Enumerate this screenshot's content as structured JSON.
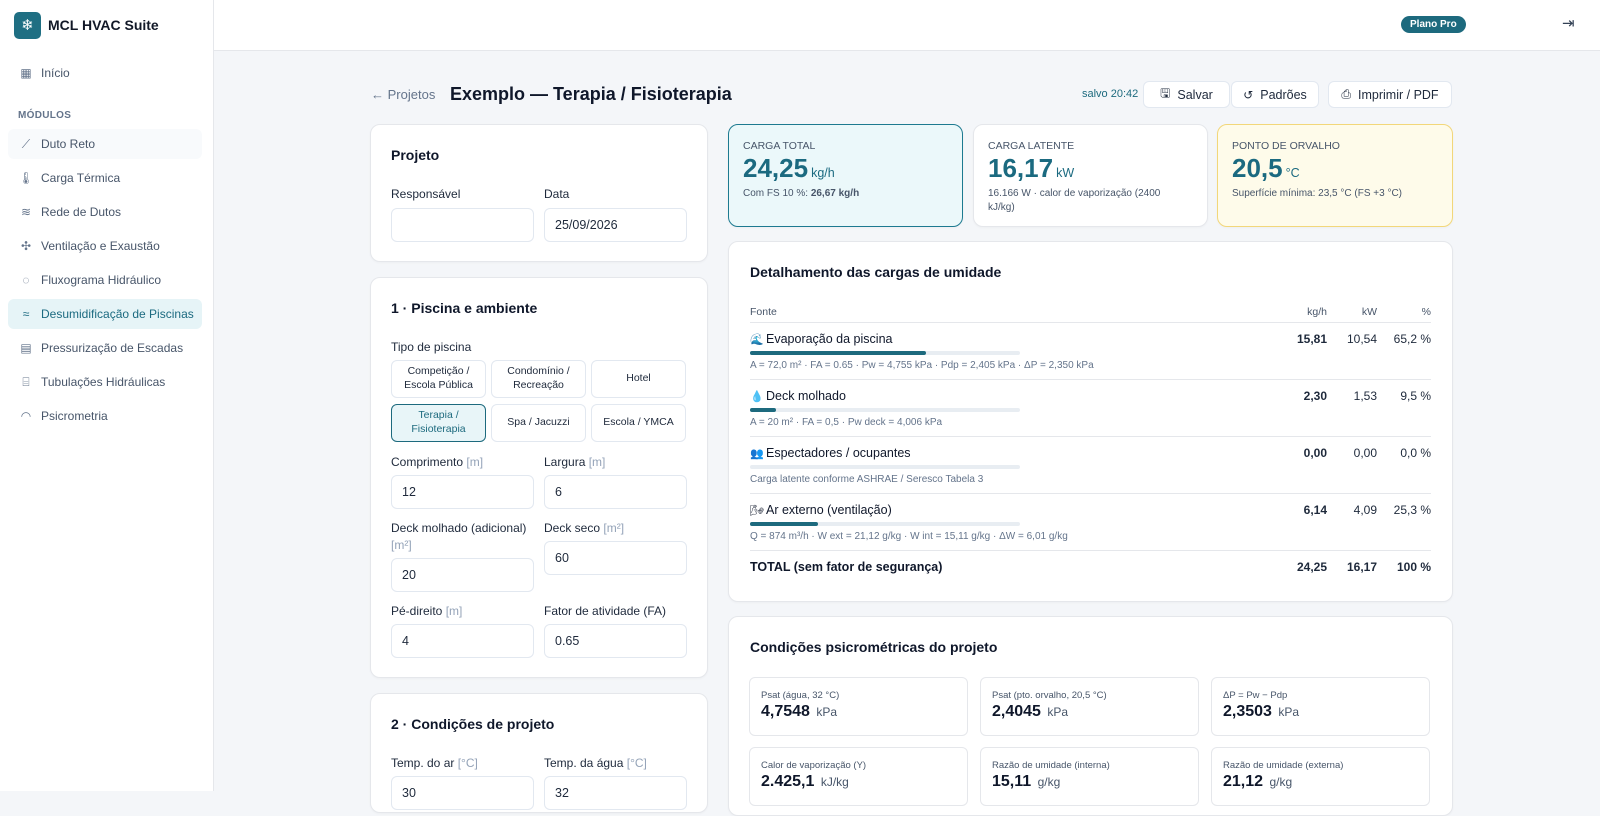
{
  "app": {
    "name": "MCL HVAC Suite",
    "logo_icon": "snowflake-icon"
  },
  "sidebar": {
    "home": "Início",
    "section": "MÓDULOS",
    "items": [
      {
        "label": "Duto Reto",
        "icon": "ruler-icon"
      },
      {
        "label": "Carga Térmica",
        "icon": "thermometer-icon"
      },
      {
        "label": "Rede de Dutos",
        "icon": "wind-icon"
      },
      {
        "label": "Ventilação e Exaustão",
        "icon": "fan-icon"
      },
      {
        "label": "Fluxograma Hidráulico",
        "icon": "droplets-icon"
      },
      {
        "label": "Desumidificação de Piscinas",
        "icon": "waves-icon",
        "active": true
      },
      {
        "label": "Pressurização de Escadas",
        "icon": "building-icon"
      },
      {
        "label": "Tubulações Hidráulicas",
        "icon": "cylinder-icon"
      },
      {
        "label": "Psicrometria",
        "icon": "gauge-icon"
      }
    ]
  },
  "topbar": {
    "plan": "Plano Pro"
  },
  "header": {
    "back": "Projetos",
    "title": "Exemplo — Terapia / Fisioterapia",
    "saved": "salvo 20:42",
    "save": "Salvar",
    "defaults": "Padrões",
    "print": "Imprimir / PDF"
  },
  "project": {
    "title": "Projeto",
    "responsible_label": "Responsável",
    "responsible_value": "",
    "date_label": "Data",
    "date_value": "25/09/2026"
  },
  "pool": {
    "title": "1 · Piscina e ambiente",
    "type_label": "Tipo de piscina",
    "types": [
      {
        "line1": "Competição /",
        "line2": "Escola Pública"
      },
      {
        "line1": "Condomínio /",
        "line2": "Recreação"
      },
      {
        "line1": "Hotel",
        "line2": ""
      },
      {
        "line1": "Terapia /",
        "line2": "Fisioterapia",
        "selected": true
      },
      {
        "line1": "Spa / Jacuzzi",
        "line2": ""
      },
      {
        "line1": "Escola / YMCA",
        "line2": ""
      }
    ],
    "length_label": "Comprimento",
    "length_unit": "[m]",
    "length_value": "12",
    "width_label": "Largura",
    "width_unit": "[m]",
    "width_value": "6",
    "wet_deck_label": "Deck molhado (adicional)",
    "wet_deck_unit": "[m²]",
    "wet_deck_value": "20",
    "dry_deck_label": "Deck seco",
    "dry_deck_unit": "[m²]",
    "dry_deck_value": "60",
    "height_label": "Pé-direito",
    "height_unit": "[m]",
    "height_value": "4",
    "fa_label": "Fator de atividade (FA)",
    "fa_value": "0.65"
  },
  "conditions": {
    "title": "2 · Condições de projeto",
    "air_label": "Temp. do ar",
    "air_unit": "[°C]",
    "air_value": "30",
    "water_label": "Temp. da água",
    "water_unit": "[°C]",
    "water_value": "32"
  },
  "kpis": {
    "total": {
      "label": "CARGA TOTAL",
      "value": "24,25",
      "unit": "kg/h",
      "sub_prefix": "Com FS 10 %: ",
      "sub_strong": "26,67 kg/h"
    },
    "latent": {
      "label": "CARGA LATENTE",
      "value": "16,17",
      "unit": "kW",
      "sub1": "16.166 W · calor de vaporização (2400",
      "sub2": "kJ/kg)"
    },
    "dew": {
      "label": "PONTO DE ORVALHO",
      "value": "20,5",
      "unit": "°C",
      "sub": "Superfície mínima: 23,5 °C (FS +3 °C)"
    }
  },
  "breakdown": {
    "title": "Detalhamento das cargas de umidade",
    "col_source": "Fonte",
    "col_kgh": "kg/h",
    "col_kw": "kW",
    "col_pct": "%",
    "rows": [
      {
        "emoji": "🌊",
        "name": "Evaporação da piscina",
        "detail": "A = 72,0 m² · FA = 0.65 · Pw = 4,755 kPa · Pdp = 2,405 kPa · ΔP = 2,350 kPa",
        "kgh": "15,81",
        "kw": "10,54",
        "pct": "65,2 %",
        "share": 0.652
      },
      {
        "emoji": "💧",
        "name": "Deck molhado",
        "detail": "A = 20 m² · FA = 0,5 · Pw deck = 4,006 kPa",
        "kgh": "2,30",
        "kw": "1,53",
        "pct": "9,5 %",
        "share": 0.095
      },
      {
        "emoji": "👥",
        "name": "Espectadores / ocupantes",
        "detail": "Carga latente conforme ASHRAE / Seresco Tabela 3",
        "kgh": "0,00",
        "kw": "0,00",
        "pct": "0,0 %",
        "share": 0
      },
      {
        "emoji": "🌬",
        "name": "Ar externo (ventilação)",
        "detail": "Q = 874 m³/h · W ext = 21,12 g/kg · W int = 15,11 g/kg · ΔW = 6,01 g/kg",
        "kgh": "6,14",
        "kw": "4,09",
        "pct": "25,3 %",
        "share": 0.253
      }
    ],
    "total_label": "TOTAL (sem fator de segurança)",
    "total_kgh": "24,25",
    "total_kw": "16,17",
    "total_pct": "100 %"
  },
  "psychro": {
    "title": "Condições psicrométricas do projeto",
    "tiles": [
      {
        "label": "Psat (água, 32 °C)",
        "value": "4,7548",
        "unit": "kPa"
      },
      {
        "label": "Psat (pto. orvalho, 20,5 °C)",
        "value": "2,4045",
        "unit": "kPa"
      },
      {
        "label": "ΔP = Pw − Pdp",
        "value": "2,3503",
        "unit": "kPa"
      },
      {
        "label": "Calor de vaporização (Y)",
        "value": "2.425,1",
        "unit": "kJ/kg"
      },
      {
        "label": "Razão de umidade (interna)",
        "value": "15,11",
        "unit": "g/kg"
      },
      {
        "label": "Razão de umidade (externa)",
        "value": "21,12",
        "unit": "g/kg"
      }
    ]
  }
}
